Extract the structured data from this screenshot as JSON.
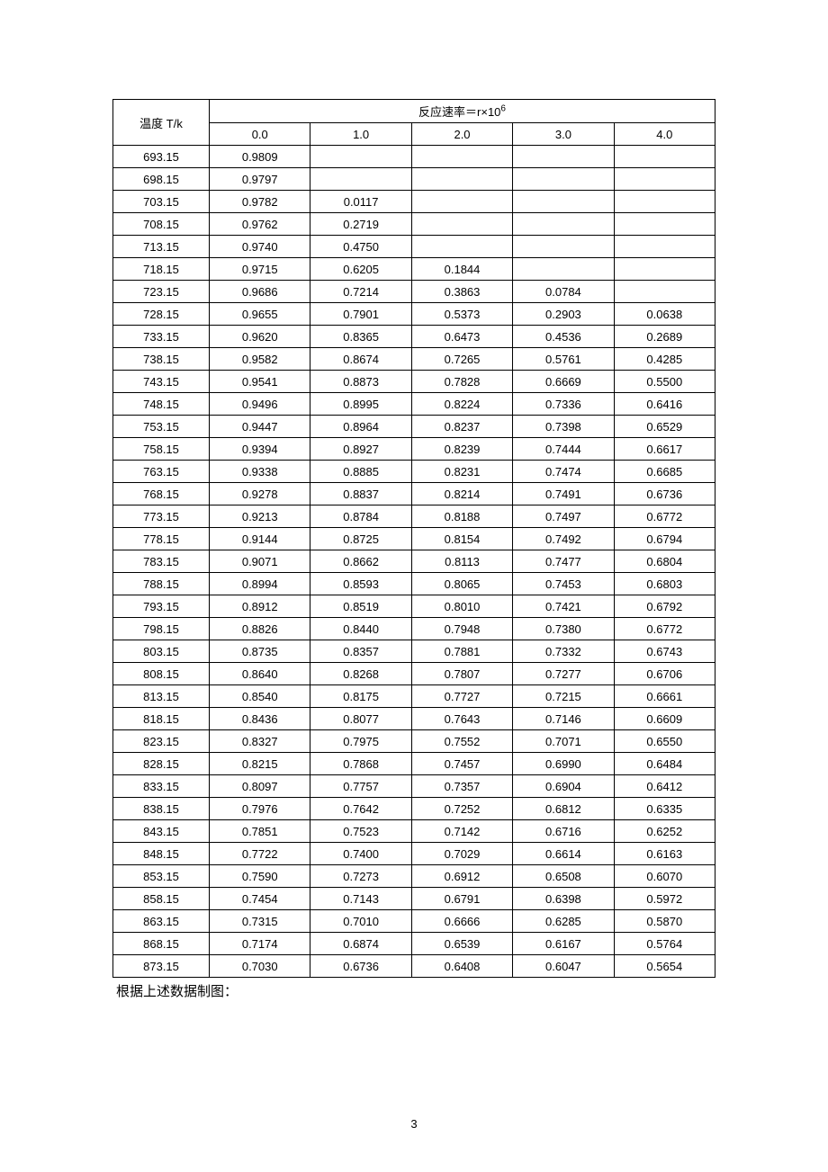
{
  "table": {
    "temp_header": "温度 T/k",
    "rate_header_prefix": "反应速率＝r×10",
    "rate_header_sup": "6",
    "sub_columns": [
      "0.0",
      "1.0",
      "2.0",
      "3.0",
      "4.0"
    ],
    "rows": [
      {
        "t": "693.15",
        "v": [
          "0.9809",
          "",
          "",
          "",
          ""
        ]
      },
      {
        "t": "698.15",
        "v": [
          "0.9797",
          "",
          "",
          "",
          ""
        ]
      },
      {
        "t": "703.15",
        "v": [
          "0.9782",
          "0.0117",
          "",
          "",
          ""
        ]
      },
      {
        "t": "708.15",
        "v": [
          "0.9762",
          "0.2719",
          "",
          "",
          ""
        ]
      },
      {
        "t": "713.15",
        "v": [
          "0.9740",
          "0.4750",
          "",
          "",
          ""
        ]
      },
      {
        "t": "718.15",
        "v": [
          "0.9715",
          "0.6205",
          "0.1844",
          "",
          ""
        ]
      },
      {
        "t": "723.15",
        "v": [
          "0.9686",
          "0.7214",
          "0.3863",
          "0.0784",
          ""
        ]
      },
      {
        "t": "728.15",
        "v": [
          "0.9655",
          "0.7901",
          "0.5373",
          "0.2903",
          "0.0638"
        ]
      },
      {
        "t": "733.15",
        "v": [
          "0.9620",
          "0.8365",
          "0.6473",
          "0.4536",
          "0.2689"
        ]
      },
      {
        "t": "738.15",
        "v": [
          "0.9582",
          "0.8674",
          "0.7265",
          "0.5761",
          "0.4285"
        ]
      },
      {
        "t": "743.15",
        "v": [
          "0.9541",
          "0.8873",
          "0.7828",
          "0.6669",
          "0.5500"
        ]
      },
      {
        "t": "748.15",
        "v": [
          "0.9496",
          "0.8995",
          "0.8224",
          "0.7336",
          "0.6416"
        ]
      },
      {
        "t": "753.15",
        "v": [
          "0.9447",
          "0.8964",
          "0.8237",
          "0.7398",
          "0.6529"
        ]
      },
      {
        "t": "758.15",
        "v": [
          "0.9394",
          "0.8927",
          "0.8239",
          "0.7444",
          "0.6617"
        ]
      },
      {
        "t": "763.15",
        "v": [
          "0.9338",
          "0.8885",
          "0.8231",
          "0.7474",
          "0.6685"
        ]
      },
      {
        "t": "768.15",
        "v": [
          "0.9278",
          "0.8837",
          "0.8214",
          "0.7491",
          "0.6736"
        ]
      },
      {
        "t": "773.15",
        "v": [
          "0.9213",
          "0.8784",
          "0.8188",
          "0.7497",
          "0.6772"
        ]
      },
      {
        "t": "778.15",
        "v": [
          "0.9144",
          "0.8725",
          "0.8154",
          "0.7492",
          "0.6794"
        ]
      },
      {
        "t": "783.15",
        "v": [
          "0.9071",
          "0.8662",
          "0.8113",
          "0.7477",
          "0.6804"
        ]
      },
      {
        "t": "788.15",
        "v": [
          "0.8994",
          "0.8593",
          "0.8065",
          "0.7453",
          "0.6803"
        ]
      },
      {
        "t": "793.15",
        "v": [
          "0.8912",
          "0.8519",
          "0.8010",
          "0.7421",
          "0.6792"
        ]
      },
      {
        "t": "798.15",
        "v": [
          "0.8826",
          "0.8440",
          "0.7948",
          "0.7380",
          "0.6772"
        ]
      },
      {
        "t": "803.15",
        "v": [
          "0.8735",
          "0.8357",
          "0.7881",
          "0.7332",
          "0.6743"
        ]
      },
      {
        "t": "808.15",
        "v": [
          "0.8640",
          "0.8268",
          "0.7807",
          "0.7277",
          "0.6706"
        ]
      },
      {
        "t": "813.15",
        "v": [
          "0.8540",
          "0.8175",
          "0.7727",
          "0.7215",
          "0.6661"
        ]
      },
      {
        "t": "818.15",
        "v": [
          "0.8436",
          "0.8077",
          "0.7643",
          "0.7146",
          "0.6609"
        ]
      },
      {
        "t": "823.15",
        "v": [
          "0.8327",
          "0.7975",
          "0.7552",
          "0.7071",
          "0.6550"
        ]
      },
      {
        "t": "828.15",
        "v": [
          "0.8215",
          "0.7868",
          "0.7457",
          "0.6990",
          "0.6484"
        ]
      },
      {
        "t": "833.15",
        "v": [
          "0.8097",
          "0.7757",
          "0.7357",
          "0.6904",
          "0.6412"
        ]
      },
      {
        "t": "838.15",
        "v": [
          "0.7976",
          "0.7642",
          "0.7252",
          "0.6812",
          "0.6335"
        ]
      },
      {
        "t": "843.15",
        "v": [
          "0.7851",
          "0.7523",
          "0.7142",
          "0.6716",
          "0.6252"
        ]
      },
      {
        "t": "848.15",
        "v": [
          "0.7722",
          "0.7400",
          "0.7029",
          "0.6614",
          "0.6163"
        ]
      },
      {
        "t": "853.15",
        "v": [
          "0.7590",
          "0.7273",
          "0.6912",
          "0.6508",
          "0.6070"
        ]
      },
      {
        "t": "858.15",
        "v": [
          "0.7454",
          "0.7143",
          "0.6791",
          "0.6398",
          "0.5972"
        ]
      },
      {
        "t": "863.15",
        "v": [
          "0.7315",
          "0.7010",
          "0.6666",
          "0.6285",
          "0.5870"
        ]
      },
      {
        "t": "868.15",
        "v": [
          "0.7174",
          "0.6874",
          "0.6539",
          "0.6167",
          "0.5764"
        ]
      },
      {
        "t": "873.15",
        "v": [
          "0.7030",
          "0.6736",
          "0.6408",
          "0.6047",
          "0.5654"
        ]
      }
    ]
  },
  "caption": "根据上述数据制图：",
  "page_number": "3",
  "style": {
    "border_color": "#000000",
    "background_color": "#ffffff",
    "font_size_body": 13,
    "font_size_caption": 15,
    "col_widths": [
      "16%",
      "16.8%",
      "16.8%",
      "16.8%",
      "16.8%",
      "16.8%"
    ]
  }
}
